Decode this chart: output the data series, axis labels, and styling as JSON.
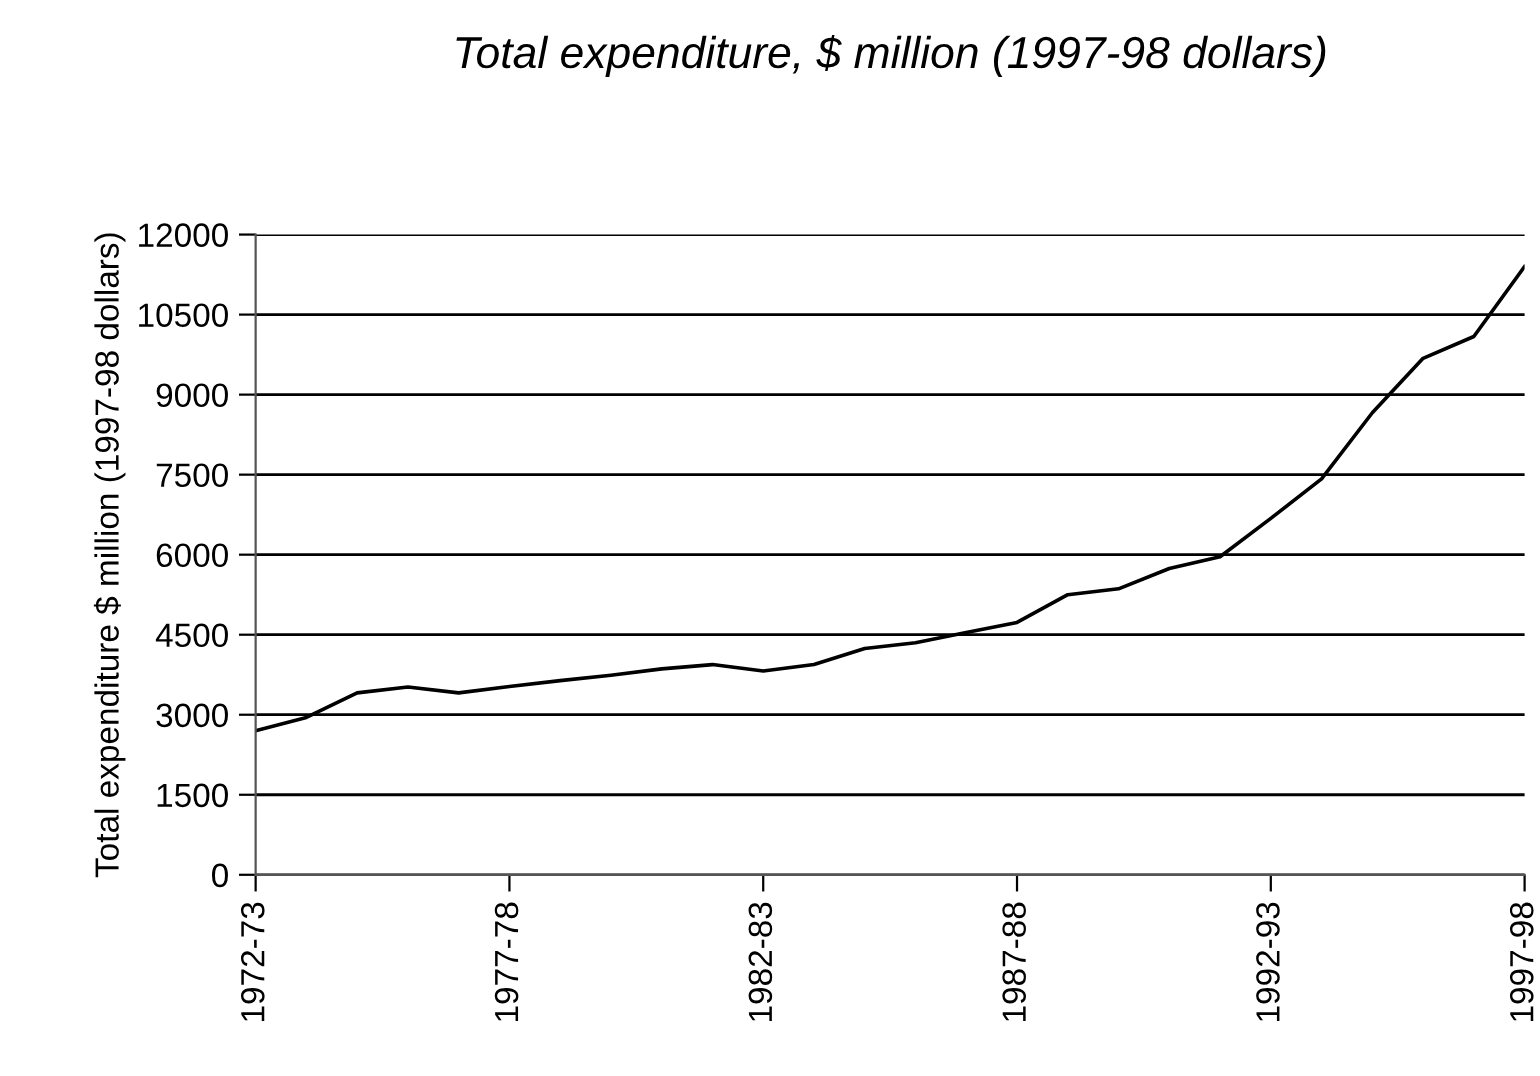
{
  "chart_data": {
    "type": "line",
    "title": "Total expenditure, $ million (1997-98 dollars)",
    "ylabel": "Total expenditure $ million (1997-98 dollars)",
    "categories": [
      "1972-73",
      null,
      null,
      null,
      null,
      "1977-78",
      null,
      null,
      null,
      null,
      "1982-83",
      null,
      null,
      null,
      null,
      "1987-88",
      null,
      null,
      null,
      null,
      "1992-93",
      null,
      null,
      null,
      null,
      "1997-98"
    ],
    "series": [
      {
        "color": "#000000",
        "values": [
          2700,
          2950,
          3410,
          3520,
          3410,
          3530,
          3640,
          3740,
          3860,
          3940,
          3820,
          3940,
          4240,
          4350,
          4540,
          4730,
          5250,
          5360,
          5740,
          5960,
          6680,
          7420,
          8660,
          9680,
          10090,
          11400
        ]
      }
    ],
    "ylim": [
      0,
      12000
    ],
    "yticks": [
      0,
      1500,
      3000,
      4500,
      6000,
      7500,
      9000,
      10500,
      12000
    ],
    "grid": "y",
    "marker": "none",
    "line_style": "solid",
    "legend": false
  }
}
